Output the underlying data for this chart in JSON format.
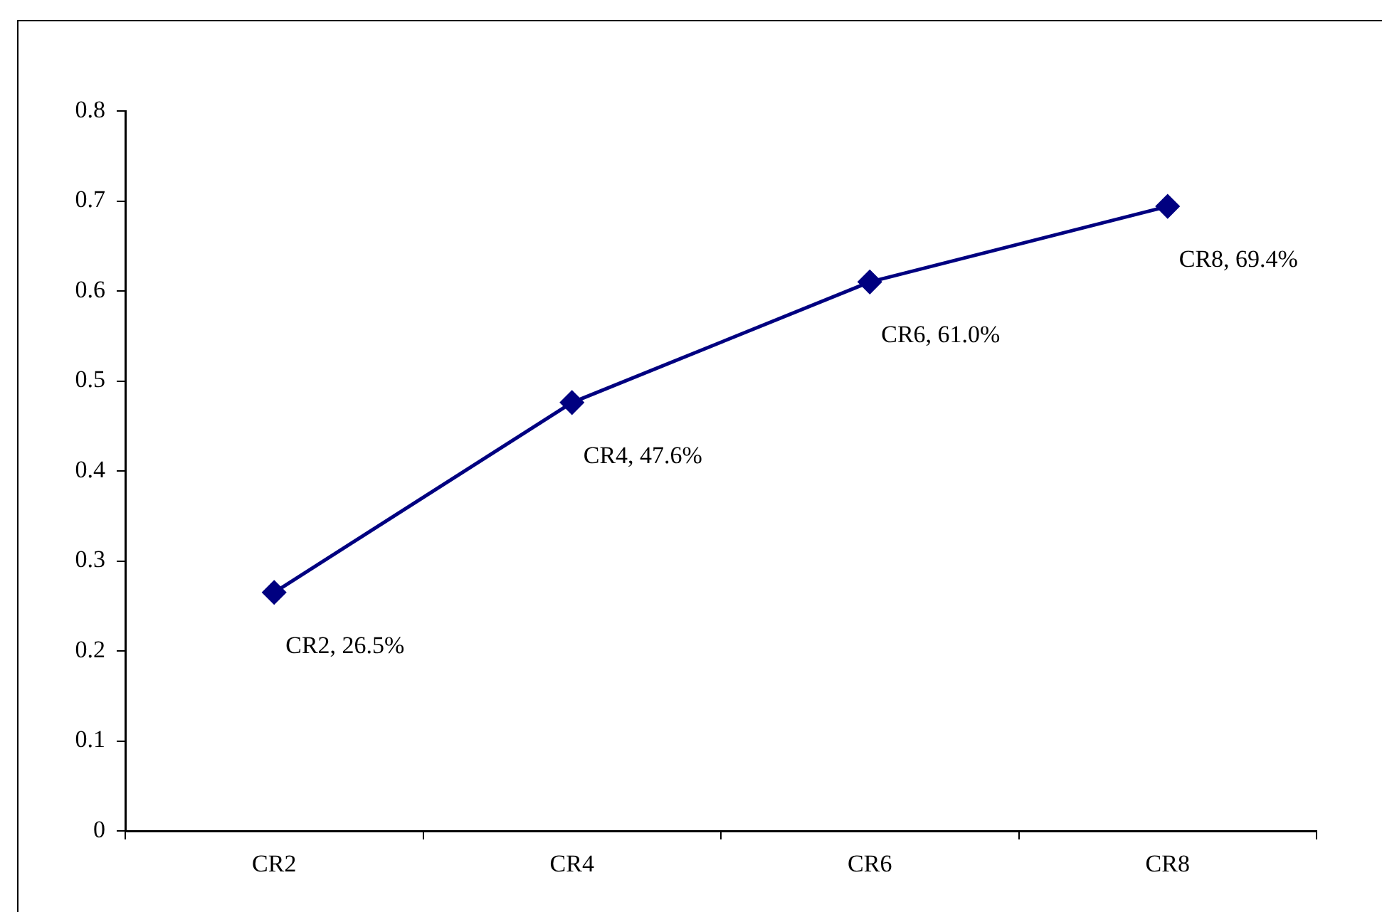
{
  "chart_data": {
    "type": "line",
    "categories": [
      "CR2",
      "CR4",
      "CR6",
      "CR8"
    ],
    "series": [
      {
        "color": "#000080",
        "values": [
          0.265,
          0.476,
          0.61,
          0.694
        ],
        "value_labels": [
          "CR2, 26.5%",
          "CR4, 47.6%",
          "CR6, 61.0%",
          "CR8, 69.4%"
        ]
      }
    ],
    "ylim": [
      0,
      0.8
    ],
    "yticks": [
      0,
      0.1,
      0.2,
      0.3,
      0.4,
      0.5,
      0.6,
      0.7,
      0.8
    ],
    "grid": false,
    "legend": false,
    "marker": "diamond",
    "line_style": "solid"
  }
}
